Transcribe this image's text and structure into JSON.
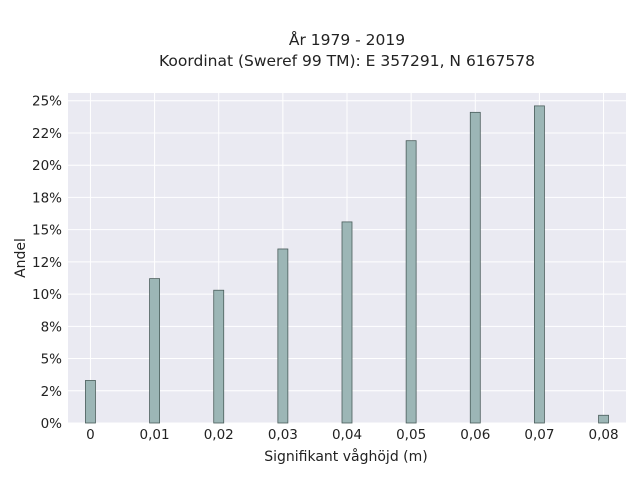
{
  "chart_data": {
    "type": "bar",
    "title_line1": "År 1979 - 2019",
    "title_line2": "Koordinat (Sweref 99 TM): E 357291, N 6167578",
    "xlabel": "Signifikant våghöjd (m)",
    "ylabel": "Andel",
    "x": [
      0,
      0.01,
      0.02,
      0.03,
      0.04,
      0.05,
      0.06,
      0.07,
      0.08
    ],
    "x_tick_labels": [
      "0",
      "0,01",
      "0,02",
      "0,03",
      "0,04",
      "0,05",
      "0,06",
      "0,07",
      "0,08"
    ],
    "values": [
      3.3,
      11.2,
      10.3,
      13.5,
      15.6,
      21.9,
      24.1,
      24.6,
      0.6
    ],
    "y_tick_values": [
      0,
      2.5,
      5,
      7.5,
      10,
      12.5,
      15,
      17.5,
      20,
      22.5,
      25
    ],
    "y_tick_labels": [
      "0%",
      "2%",
      "5%",
      "8%",
      "10%",
      "12%",
      "15%",
      "18%",
      "20%",
      "22%",
      "25%"
    ],
    "ylim": [
      0,
      25.6
    ],
    "xlim": [
      -0.0035,
      0.0835
    ],
    "grid": true,
    "colors": {
      "bar_fill": "#9cb6b6",
      "bar_edge": "#4a5d5b",
      "plot_bg": "#eaeaf2",
      "grid": "#ffffff"
    }
  }
}
